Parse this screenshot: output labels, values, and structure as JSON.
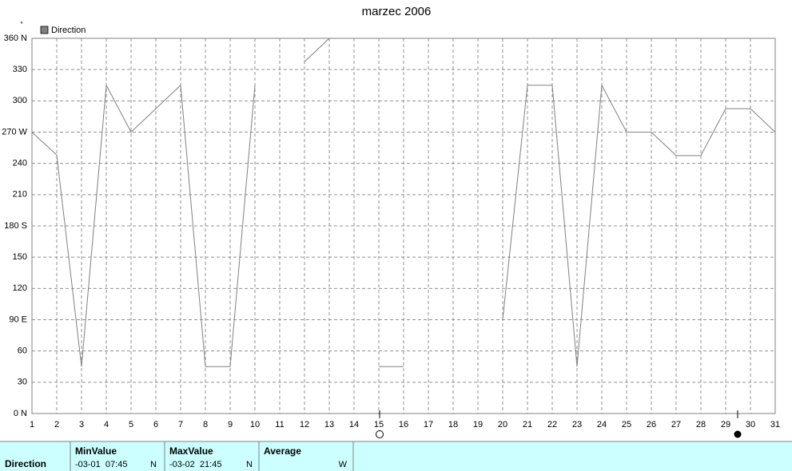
{
  "chart_data": {
    "type": "line",
    "title": "marzec 2006",
    "y_unit": "°",
    "x": [
      1,
      2,
      3,
      4,
      5,
      6,
      7,
      8,
      9,
      10,
      11,
      12,
      13,
      14,
      15,
      16,
      17,
      18,
      19,
      20,
      21,
      22,
      23,
      24,
      25,
      26,
      27,
      28,
      29,
      30,
      31
    ],
    "series": [
      {
        "name": "Direction",
        "color": "#808080",
        "values": [
          270,
          248,
          45,
          315,
          270,
          292.5,
          315,
          45,
          45,
          315,
          null,
          337.5,
          360,
          null,
          45,
          45,
          null,
          null,
          null,
          90,
          315,
          315,
          45,
          315,
          270,
          270,
          247.5,
          247.5,
          292.5,
          292.5,
          270
        ]
      }
    ],
    "xlim": [
      1,
      31
    ],
    "xticks": [
      1,
      2,
      3,
      4,
      5,
      6,
      7,
      8,
      9,
      10,
      11,
      12,
      13,
      14,
      15,
      16,
      17,
      18,
      19,
      20,
      21,
      22,
      23,
      24,
      25,
      26,
      27,
      28,
      29,
      30,
      31
    ],
    "ylim": [
      0,
      360
    ],
    "yticks": [
      {
        "value": 0,
        "label": "0 N"
      },
      30,
      60,
      {
        "value": 90,
        "label": "90 E"
      },
      120,
      150,
      {
        "value": 180,
        "label": "180 S"
      },
      210,
      240,
      {
        "value": 270,
        "label": "270 W"
      },
      300,
      330,
      {
        "value": 360,
        "label": "360 N"
      }
    ],
    "grid": true,
    "legend": "top-left"
  },
  "table": {
    "columns": [
      "MinValue",
      "MaxValue",
      "Average"
    ],
    "rows": [
      {
        "name": "Direction",
        "min": {
          "time": "-03-01  07:45",
          "dir": "N"
        },
        "max": {
          "time": "-03-02  21:45",
          "dir": "N"
        },
        "average": {
          "dir": "W"
        }
      }
    ]
  }
}
